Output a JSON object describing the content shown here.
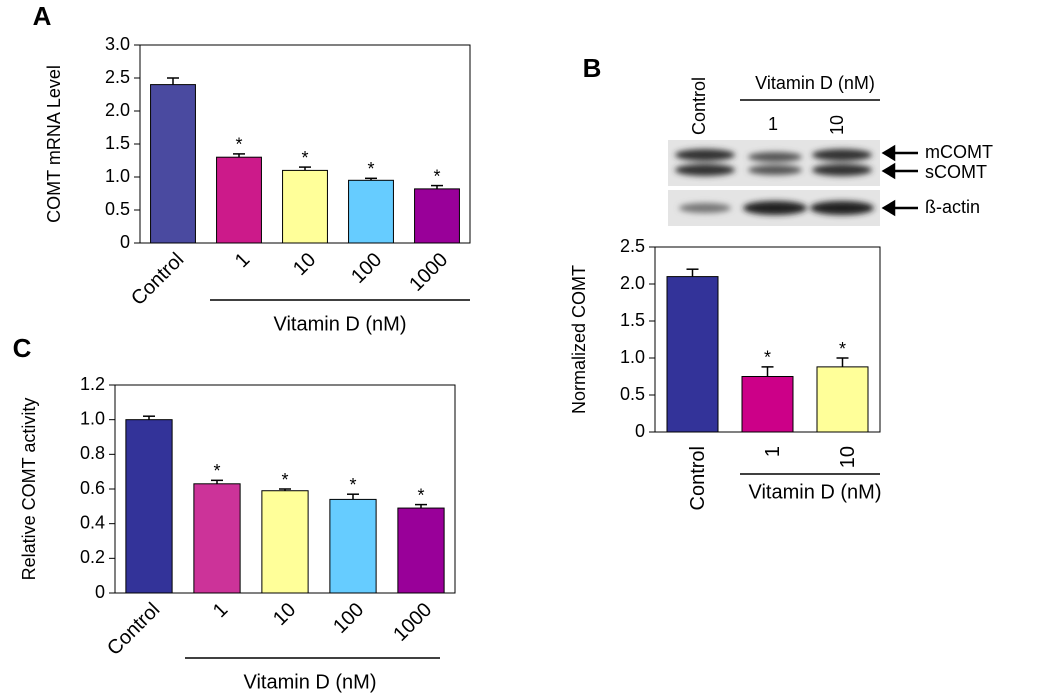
{
  "chart_data": [
    {
      "type": "bar",
      "panel": "A",
      "ylabel": "COMT mRNA Level",
      "categories": [
        "Control",
        "1",
        "10",
        "100",
        "1000"
      ],
      "values": [
        2.4,
        1.3,
        1.1,
        0.95,
        0.82
      ],
      "errors": [
        0.1,
        0.05,
        0.05,
        0.03,
        0.05
      ],
      "significance": [
        null,
        "*",
        "*",
        "*",
        "*"
      ],
      "colors": [
        "#4a4aa0",
        "#cc1a8a",
        "#ffff99",
        "#66ccff",
        "#990099"
      ],
      "ylim": [
        0,
        3
      ],
      "yticks": [
        0,
        0.5,
        {
          "value": 1,
          "label": "1.0"
        },
        1.5,
        {
          "value": 2,
          "label": "2.0"
        },
        2.5,
        {
          "value": 3,
          "label": "3.0"
        }
      ],
      "group_label": "Vitamin D (nM)"
    },
    {
      "type": "bar",
      "panel": "B",
      "ylabel": "Normalized COMT",
      "categories": [
        "Control",
        "1",
        "10"
      ],
      "values": [
        2.1,
        0.75,
        0.88
      ],
      "errors": [
        0.1,
        0.13,
        0.12
      ],
      "significance": [
        null,
        "*",
        "*"
      ],
      "colors": [
        "#333399",
        "#cc0088",
        "#ffff99"
      ],
      "ylim": [
        0,
        2.5
      ],
      "yticks": [
        0,
        0.5,
        {
          "value": 1,
          "label": "1.0"
        },
        1.5,
        {
          "value": 2,
          "label": "2.0"
        },
        2.5
      ],
      "group_label": "Vitamin D (nM)"
    },
    {
      "type": "bar",
      "panel": "C",
      "ylabel": "Relative COMT activity",
      "categories": [
        "Control",
        "1",
        "10",
        "100",
        "1000"
      ],
      "values": [
        1.0,
        0.63,
        0.59,
        0.54,
        0.49
      ],
      "errors": [
        0.02,
        0.02,
        0.01,
        0.03,
        0.02
      ],
      "significance": [
        null,
        "*",
        "*",
        "*",
        "*"
      ],
      "colors": [
        "#333399",
        "#cc3399",
        "#ffff99",
        "#66ccff",
        "#990099"
      ],
      "ylim": [
        0,
        1.2
      ],
      "yticks": [
        0,
        0.2,
        0.4,
        0.6,
        0.8,
        {
          "value": 1,
          "label": "1.0"
        },
        1.2
      ],
      "group_label": "Vitamin D (nM)"
    }
  ],
  "blot": {
    "lanes": [
      "Control",
      "1",
      "10"
    ],
    "group_label": "Vitamin D (nM)",
    "bands": [
      "mCOMT",
      "sCOMT",
      "ß-actin"
    ]
  }
}
